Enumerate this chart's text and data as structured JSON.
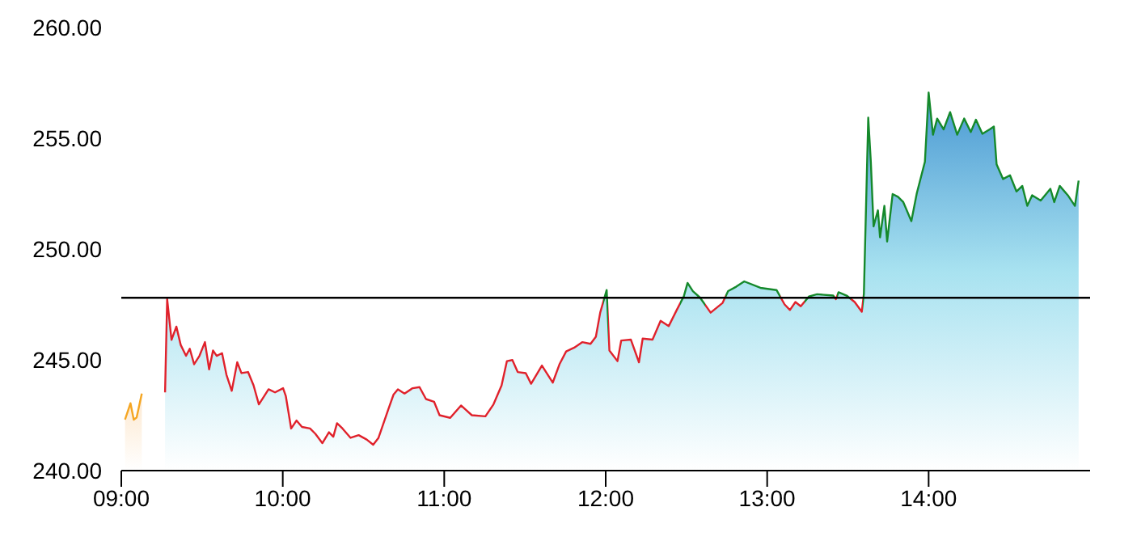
{
  "chart_data": {
    "type": "area",
    "xlim": [
      9,
      15
    ],
    "xticks": [
      {
        "value": 9,
        "label": "09:00"
      },
      {
        "value": 10,
        "label": "10:00"
      },
      {
        "value": 11,
        "label": "11:00"
      },
      {
        "value": 12,
        "label": "12:00"
      },
      {
        "value": 13,
        "label": "13:00"
      },
      {
        "value": 14,
        "label": "14:00"
      }
    ],
    "ylim": [
      240,
      260
    ],
    "yticks": [
      {
        "value": 240,
        "label": "240.00"
      },
      {
        "value": 245,
        "label": "245.00"
      },
      {
        "value": 250,
        "label": "250.00"
      },
      {
        "value": 255,
        "label": "255.00"
      },
      {
        "value": 260,
        "label": "260.00"
      }
    ],
    "grid": false,
    "legend": false,
    "marker": "none",
    "line_style": "solid",
    "ref_lines": [
      {
        "axis": "y",
        "value": 247.8,
        "color": "#000000"
      }
    ],
    "series": [
      {
        "color": "#f5a623",
        "x": [
          9.023,
          9.057,
          9.077,
          9.095,
          9.127
        ],
        "values": [
          242.3,
          243.04,
          242.3,
          242.4,
          243.48
        ]
      },
      {
        "color": "#e0212b",
        "x": [
          9.271,
          9.284,
          9.311,
          9.341,
          9.368,
          9.401,
          9.424,
          9.451,
          9.484,
          9.518,
          9.544,
          9.568,
          9.591,
          9.624,
          9.651,
          9.684,
          9.718,
          9.744,
          9.785,
          9.819,
          9.852,
          9.885,
          9.912,
          9.952,
          10.002,
          10.019,
          10.052,
          10.085,
          10.119,
          10.169,
          10.202,
          10.245,
          10.286,
          10.313,
          10.336,
          10.37,
          10.42,
          10.47,
          10.52,
          10.56,
          10.593,
          10.653,
          10.686,
          10.713,
          10.754,
          10.804,
          10.847,
          10.887,
          10.937,
          10.971,
          11.037,
          11.104,
          11.171,
          11.255,
          11.305,
          11.355,
          11.388,
          11.422,
          11.455,
          11.505,
          11.538,
          11.605,
          11.672,
          11.715,
          11.755,
          11.805,
          11.856,
          11.906,
          11.939,
          11.966,
          12.006,
          12.023,
          12.073,
          12.096,
          12.156,
          12.206,
          12.229,
          12.29,
          12.34,
          12.39,
          12.44,
          12.484,
          12.507,
          12.54,
          12.584,
          12.65,
          12.724,
          12.758,
          12.808,
          12.858,
          12.958,
          13.058,
          13.108,
          13.141,
          13.175,
          13.208,
          13.259,
          13.309,
          13.409,
          13.426,
          13.442,
          13.492,
          13.542,
          13.586,
          13.599,
          13.626,
          13.642,
          13.659,
          13.686,
          13.699,
          13.726,
          13.743,
          13.777,
          13.81,
          13.843,
          13.893,
          13.927,
          13.977,
          14,
          14.027,
          14.053,
          14.093,
          14.133,
          14.177,
          14.22,
          14.261,
          14.293,
          14.333,
          14.378,
          14.404,
          14.421,
          14.461,
          14.504,
          14.544,
          14.58,
          14.611,
          14.641,
          14.694,
          14.754,
          14.778,
          14.812,
          14.862,
          14.906,
          14.929
        ],
        "values": [
          243.53,
          247.74,
          245.9,
          246.5,
          245.67,
          245.18,
          245.5,
          244.8,
          245.18,
          245.8,
          244.57,
          245.42,
          245.18,
          245.3,
          244.33,
          243.6,
          244.89,
          244.4,
          244.45,
          243.85,
          242.99,
          243.36,
          243.67,
          243.53,
          243.72,
          243.36,
          241.9,
          242.26,
          241.97,
          241.9,
          241.66,
          241.24,
          241.73,
          241.53,
          242.14,
          241.9,
          241.48,
          241.6,
          241.4,
          241.17,
          241.48,
          242.75,
          243.43,
          243.67,
          243.48,
          243.72,
          243.77,
          243.23,
          243.11,
          242.5,
          242.38,
          242.94,
          242.5,
          242.45,
          242.99,
          243.84,
          244.94,
          244.99,
          244.45,
          244.4,
          243.92,
          244.74,
          243.97,
          244.82,
          245.38,
          245.55,
          245.8,
          245.72,
          246.04,
          247.13,
          248.15,
          245.42,
          244.94,
          245.87,
          245.91,
          244.89,
          245.96,
          245.91,
          246.76,
          246.52,
          247.25,
          247.87,
          248.47,
          248.1,
          247.81,
          247.13,
          247.57,
          248.1,
          248.3,
          248.54,
          248.25,
          248.15,
          247.5,
          247.25,
          247.61,
          247.42,
          247.86,
          247.96,
          247.9,
          247.74,
          248.05,
          247.9,
          247.61,
          247.17,
          247.98,
          255.93,
          253.94,
          251.02,
          251.75,
          250.53,
          251.95,
          250.34,
          252.48,
          252.36,
          252.12,
          251.26,
          252.53,
          253.94,
          257.06,
          255.16,
          255.89,
          255.4,
          256.18,
          255.16,
          255.89,
          255.28,
          255.84,
          255.2,
          255.4,
          255.53,
          253.82,
          253.16,
          253.33,
          252.6,
          252.85,
          251.95,
          252.43,
          252.19,
          252.72,
          252.12,
          252.85,
          252.43,
          251.95,
          253.09
        ],
        "colors": [
          "#e0212b",
          "#e0212b",
          "#e0212b",
          "#e0212b",
          "#e0212b",
          "#e0212b",
          "#e0212b",
          "#e0212b",
          "#e0212b",
          "#e0212b",
          "#e0212b",
          "#e0212b",
          "#e0212b",
          "#e0212b",
          "#e0212b",
          "#e0212b",
          "#e0212b",
          "#e0212b",
          "#e0212b",
          "#e0212b",
          "#e0212b",
          "#e0212b",
          "#e0212b",
          "#e0212b",
          "#e0212b",
          "#e0212b",
          "#e0212b",
          "#e0212b",
          "#e0212b",
          "#e0212b",
          "#e0212b",
          "#e0212b",
          "#e0212b",
          "#e0212b",
          "#e0212b",
          "#e0212b",
          "#e0212b",
          "#e0212b",
          "#e0212b",
          "#e0212b",
          "#e0212b",
          "#e0212b",
          "#e0212b",
          "#e0212b",
          "#e0212b",
          "#e0212b",
          "#e0212b",
          "#e0212b",
          "#e0212b",
          "#e0212b",
          "#e0212b",
          "#e0212b",
          "#e0212b",
          "#e0212b",
          "#e0212b",
          "#e0212b",
          "#e0212b",
          "#e0212b",
          "#e0212b",
          "#e0212b",
          "#e0212b",
          "#e0212b",
          "#e0212b",
          "#e0212b",
          "#e0212b",
          "#e0212b",
          "#e0212b",
          "#e0212b",
          "#e0212b",
          "#e0212b",
          "#15892b",
          "#e0212b",
          "#e0212b",
          "#e0212b",
          "#e0212b",
          "#e0212b",
          "#e0212b",
          "#e0212b",
          "#e0212b",
          "#e0212b",
          "#e0212b",
          "#15892b",
          "#15892b",
          "#15892b",
          "#15892b",
          "#e0212b",
          "#e0212b",
          "#15892b",
          "#15892b",
          "#15892b",
          "#15892b",
          "#15892b",
          "#e0212b",
          "#e0212b",
          "#e0212b",
          "#e0212b",
          "#15892b",
          "#15892b",
          "#15892b",
          "#e0212b",
          "#15892b",
          "#15892b",
          "#e0212b",
          "#e0212b",
          "#15892b",
          "#15892b",
          "#15892b",
          "#15892b",
          "#15892b",
          "#15892b",
          "#15892b",
          "#15892b",
          "#15892b",
          "#15892b",
          "#15892b",
          "#15892b",
          "#15892b",
          "#15892b",
          "#15892b",
          "#15892b",
          "#15892b",
          "#15892b",
          "#15892b",
          "#15892b",
          "#15892b",
          "#15892b",
          "#15892b",
          "#15892b",
          "#15892b",
          "#15892b",
          "#15892b",
          "#15892b",
          "#15892b",
          "#15892b",
          "#15892b",
          "#15892b",
          "#15892b",
          "#15892b",
          "#15892b",
          "#15892b",
          "#15892b",
          "#15892b",
          "#15892b",
          "#15892b"
        ]
      }
    ]
  }
}
